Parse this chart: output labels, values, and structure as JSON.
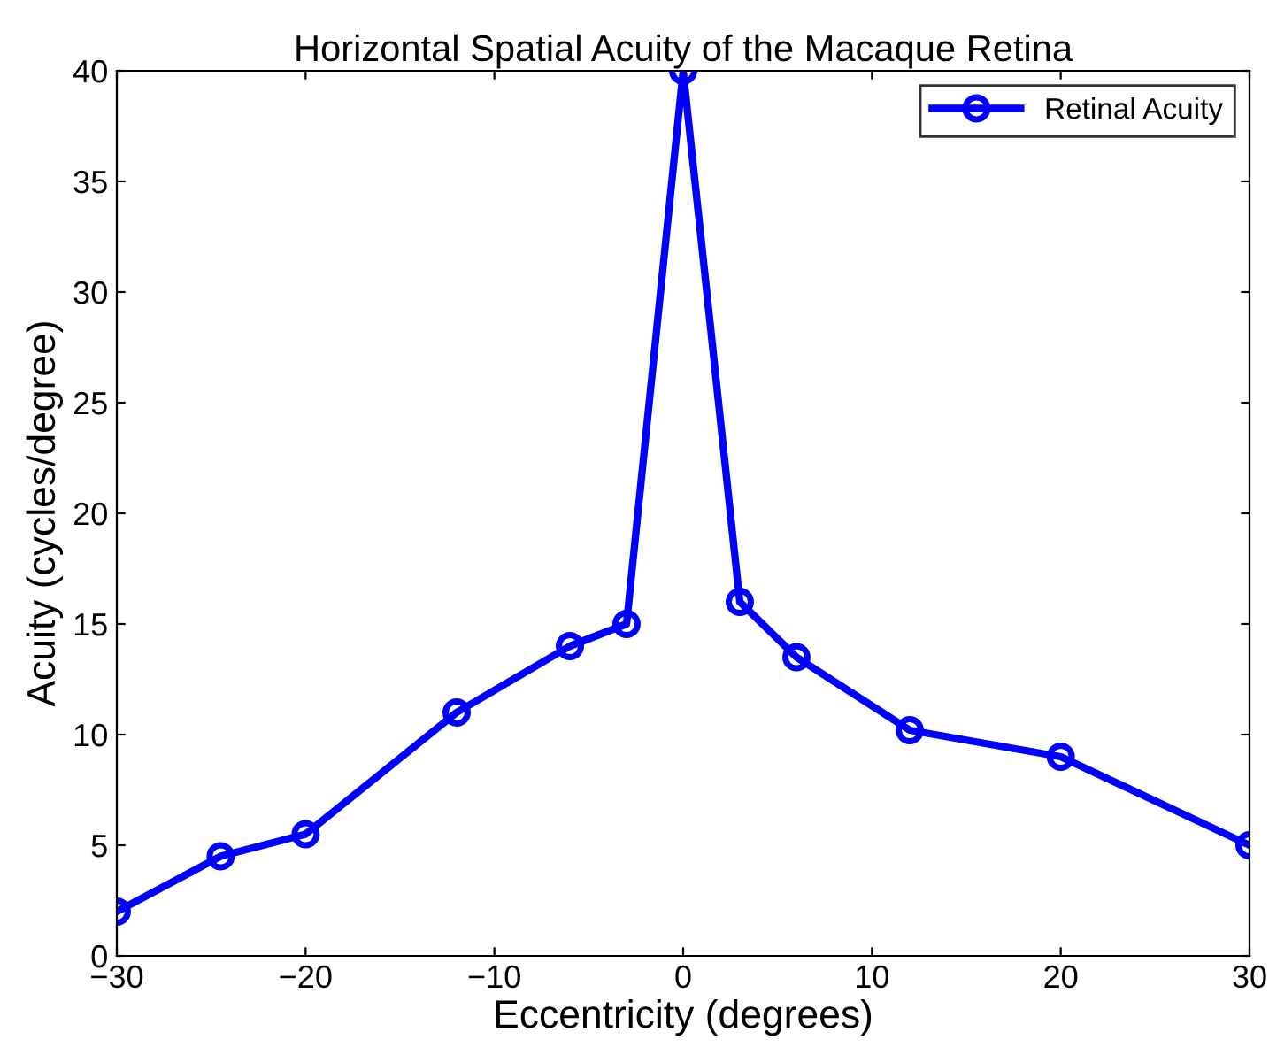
{
  "chart_data": {
    "type": "line",
    "title": "Horizontal Spatial Acuity of the Macaque Retina",
    "xlabel": "Eccentricity (degrees)",
    "ylabel": "Acuity (cycles/degree)",
    "x": [
      -30,
      -24.5,
      -20,
      -12,
      -6,
      -3,
      0,
      3,
      6,
      12,
      20,
      30
    ],
    "series": [
      {
        "name": "Retinal Acuity",
        "color": "#0000ff",
        "values": [
          2,
          4.5,
          5.5,
          11,
          14,
          15,
          40,
          16,
          13.5,
          10.2,
          9,
          5
        ]
      }
    ],
    "xlim": [
      -30,
      30
    ],
    "ylim": [
      0,
      40
    ],
    "xticks": [
      {
        "value": -30,
        "label": "−30"
      },
      {
        "value": -20,
        "label": "−20"
      },
      {
        "value": -10,
        "label": "−10"
      },
      0,
      10,
      20,
      30
    ],
    "yticks": [
      0,
      5,
      10,
      15,
      20,
      25,
      30,
      35,
      40
    ],
    "grid": false,
    "legend": "top right",
    "marker": "circle",
    "line_style": "solid"
  }
}
